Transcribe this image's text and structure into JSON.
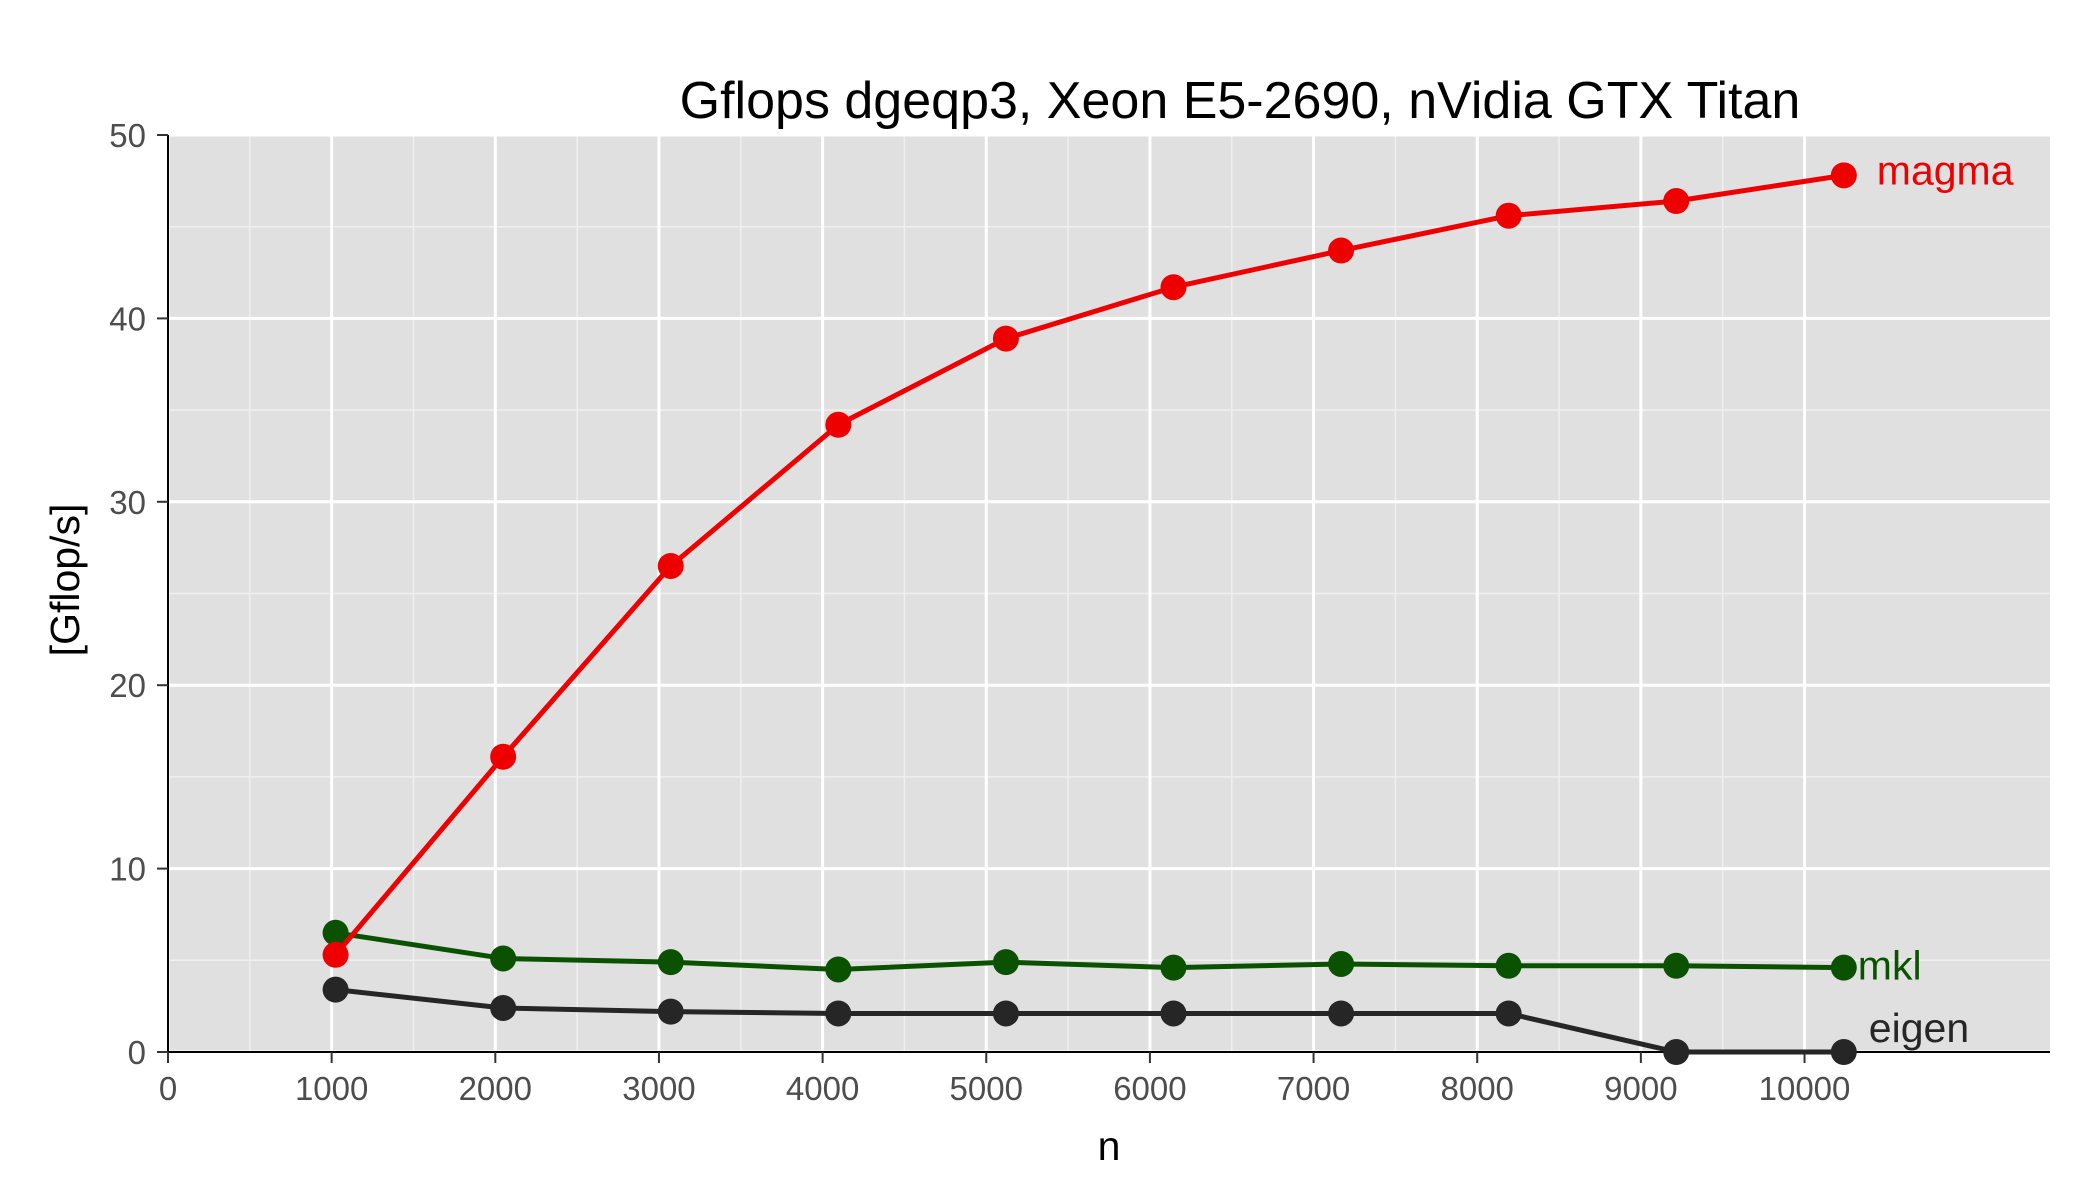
{
  "chart_data": {
    "type": "line",
    "title": "Gflops dgeqp3, Xeon E5-2690, nVidia GTX Titan",
    "xlabel": "n",
    "ylabel": "[Gflop/s]",
    "xlim": [
      0,
      11500
    ],
    "ylim": [
      0,
      50
    ],
    "xticks": [
      0,
      1000,
      2000,
      3000,
      4000,
      5000,
      6000,
      7000,
      8000,
      9000,
      10000
    ],
    "yticks": [
      0,
      10,
      20,
      30,
      40,
      50
    ],
    "grid": true,
    "legend": "direct labels at line ends",
    "x": [
      1024,
      2048,
      3072,
      4096,
      5120,
      6144,
      7168,
      8192,
      9216,
      10240
    ],
    "series": [
      {
        "name": "magma",
        "color": "#ee0000",
        "values": [
          5.3,
          16.1,
          26.5,
          34.2,
          38.9,
          41.7,
          43.7,
          45.6,
          46.4,
          47.8
        ]
      },
      {
        "name": "mkl",
        "color": "#0a5200",
        "values": [
          6.5,
          5.1,
          4.9,
          4.5,
          4.9,
          4.6,
          4.8,
          4.7,
          4.7,
          4.6
        ]
      },
      {
        "name": "eigen",
        "color": "#262626",
        "values": [
          3.4,
          2.4,
          2.2,
          2.1,
          2.1,
          2.1,
          2.1,
          2.1,
          0.0,
          0.0
        ]
      }
    ]
  }
}
